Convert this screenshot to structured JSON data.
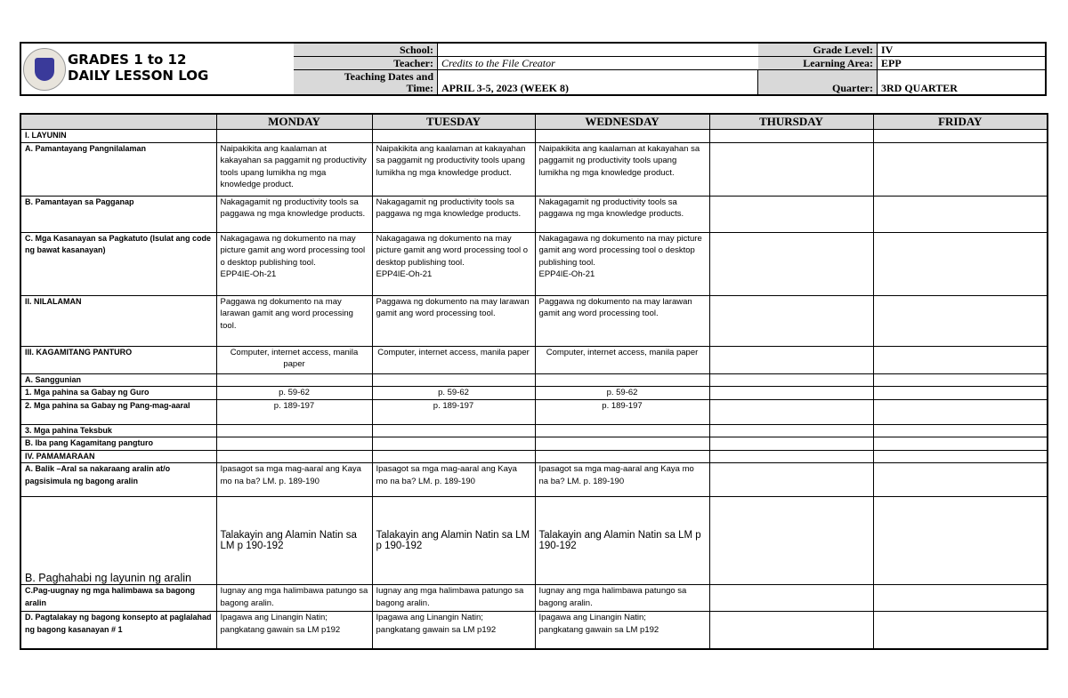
{
  "header": {
    "title_line1": "GRADES 1 to 12",
    "title_line2": "DAILY LESSON LOG",
    "school_label": "School:",
    "school": "",
    "teacher_label": "Teacher:",
    "teacher": "Credits to the File Creator",
    "dates_label": "Teaching Dates and\nTime:",
    "dates": "APRIL 3-5, 2023 (WEEK 8)",
    "grade_label": "Grade Level:",
    "grade": "IV",
    "area_label": "Learning Area:",
    "area": "EPP",
    "quarter_label": "Quarter:",
    "quarter": "3RD QUARTER"
  },
  "table": {
    "columns": [
      "",
      "MONDAY",
      "TUESDAY",
      "WEDNESDAY",
      "THURSDAY",
      "FRIDAY"
    ],
    "rows": [
      {
        "label": "I. LAYUNIN",
        "cells": [
          "",
          "",
          "",
          "",
          ""
        ]
      },
      {
        "label": "A. Pamantayang Pangnilalaman",
        "cells": [
          "Naipakikita ang kaalaman at kakayahan sa paggamit ng productivity tools upang lumikha ng mga knowledge product.",
          "Naipakikita ang kaalaman at kakayahan sa paggamit ng productivity tools upang lumikha ng mga knowledge product.",
          "Naipakikita ang kaalaman at kakayahan sa paggamit ng productivity tools upang lumikha ng mga knowledge product.",
          "",
          ""
        ]
      },
      {
        "label": "B. Pamantayan sa Pagganap",
        "cells": [
          "Nakagagamit ng productivity tools sa paggawa ng mga knowledge products.",
          "Nakagagamit ng productivity tools sa paggawa ng mga knowledge products.",
          "Nakagagamit ng productivity tools sa paggawa ng mga knowledge products.",
          "",
          ""
        ]
      },
      {
        "label": "C. Mga Kasanayan sa Pagkatuto (Isulat ang code ng bawat kasanayan)",
        "cells": [
          "Nakagagawa ng dokumento na may picture gamit ang word processing tool o desktop publishing tool.\nEPP4IE-Oh-21",
          "Nakagagawa ng dokumento na may picture gamit ang word processing tool o desktop publishing tool.\nEPP4IE-Oh-21",
          "Nakagagawa ng dokumento na may picture gamit ang word processing tool o desktop publishing tool.\nEPP4IE-Oh-21",
          "",
          ""
        ]
      },
      {
        "label": "II. NILALAMAN",
        "cells": [
          "Paggawa ng dokumento na may larawan gamit ang word processing tool.",
          "Paggawa ng dokumento na may larawan gamit ang word processing tool.",
          "Paggawa ng dokumento na may larawan gamit ang word processing tool.",
          "",
          ""
        ]
      },
      {
        "label": "III. KAGAMITANG PANTURO",
        "cells": [
          "Computer, internet access, manila paper",
          "Computer, internet access, manila paper",
          "Computer, internet access, manila paper",
          "",
          ""
        ]
      },
      {
        "label": "A. Sanggunian",
        "cells": [
          "",
          "",
          "",
          "",
          ""
        ]
      },
      {
        "label": "1. Mga pahina sa Gabay ng Guro",
        "cells": [
          "p. 59-62",
          "p. 59-62",
          "p. 59-62",
          "",
          ""
        ]
      },
      {
        "label": "2. Mga pahina sa Gabay ng Pang-mag-aaral",
        "cells": [
          "p. 189-197",
          "p. 189-197",
          "p. 189-197",
          "",
          ""
        ]
      },
      {
        "label": "3. Mga pahina Teksbuk",
        "cells": [
          "",
          "",
          "",
          "",
          ""
        ]
      },
      {
        "label": "B. Iba pang Kagamitang pangturo",
        "cells": [
          "",
          "",
          "",
          "",
          ""
        ]
      },
      {
        "label": "IV. PAMAMARAAN",
        "cells": [
          "",
          "",
          "",
          "",
          ""
        ]
      },
      {
        "label": "A. Balik –Aral sa nakaraang aralin at/o pagsisimula  ng bagong aralin",
        "cells": [
          "Ipasagot sa mga mag-aaral ang Kaya mo na ba?  LM. p. 189-190",
          "Ipasagot sa mga mag-aaral ang Kaya mo na ba?  LM. p. 189-190",
          "Ipasagot sa mga mag-aaral ang Kaya mo na ba?  LM. p. 189-190",
          "",
          ""
        ]
      },
      {
        "label": "B. Paghahabi ng layunin ng aralin",
        "cells": [
          "Talakayin ang Alamin Natin  sa LM p 190-192",
          "Talakayin ang Alamin Natin  sa LM p 190-192",
          "Talakayin ang Alamin Natin  sa LM p 190-192",
          "",
          ""
        ]
      },
      {
        "label": "C.Pag-uugnay ng mga halimbawa  sa bagong aralin",
        "cells": [
          "Iugnay ang mga halimbawa patungo sa bagong aralin.",
          "Iugnay ang mga halimbawa patungo sa bagong aralin.",
          "Iugnay ang mga halimbawa patungo sa bagong aralin.",
          "",
          ""
        ]
      },
      {
        "label": "D. Pagtalakay ng bagong konsepto  at paglalahad ng bagong kasanayan # 1",
        "cells": [
          "Ipagawa ang Linangin Natin;\npangkatang gawain sa LM p192",
          "Ipagawa ang Linangin Natin;\npangkatang gawain sa LM p192",
          "Ipagawa ang Linangin Natin;\npangkatang gawain sa LM p192",
          "",
          ""
        ]
      }
    ]
  }
}
